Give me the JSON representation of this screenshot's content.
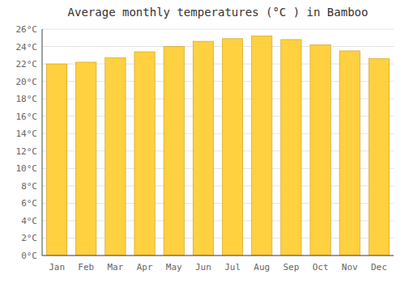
{
  "chart_data": {
    "type": "bar",
    "title": "Average monthly temperatures (°C ) in Bamboo",
    "categories": [
      "Jan",
      "Feb",
      "Mar",
      "Apr",
      "May",
      "Jun",
      "Jul",
      "Aug",
      "Sep",
      "Oct",
      "Nov",
      "Dec"
    ],
    "values": [
      22.0,
      22.2,
      22.7,
      23.4,
      24.0,
      24.6,
      24.9,
      25.2,
      24.8,
      24.2,
      23.5,
      22.6
    ],
    "color": "#FFD040",
    "ylim": [
      0,
      26
    ],
    "yticks": [
      {
        "value": 0,
        "label": "0°C"
      },
      {
        "value": 2,
        "label": "2°C"
      },
      {
        "value": 4,
        "label": "4°C"
      },
      {
        "value": 6,
        "label": "6°C"
      },
      {
        "value": 8,
        "label": "8°C"
      },
      {
        "value": 10,
        "label": "10°C"
      },
      {
        "value": 12,
        "label": "12°C"
      },
      {
        "value": 14,
        "label": "14°C"
      },
      {
        "value": 16,
        "label": "16°C"
      },
      {
        "value": 18,
        "label": "18°C"
      },
      {
        "value": 20,
        "label": "20°C"
      },
      {
        "value": 22,
        "label": "22°C"
      },
      {
        "value": 24,
        "label": "24°C"
      },
      {
        "value": 26,
        "label": "26°C"
      }
    ],
    "grid": true
  }
}
